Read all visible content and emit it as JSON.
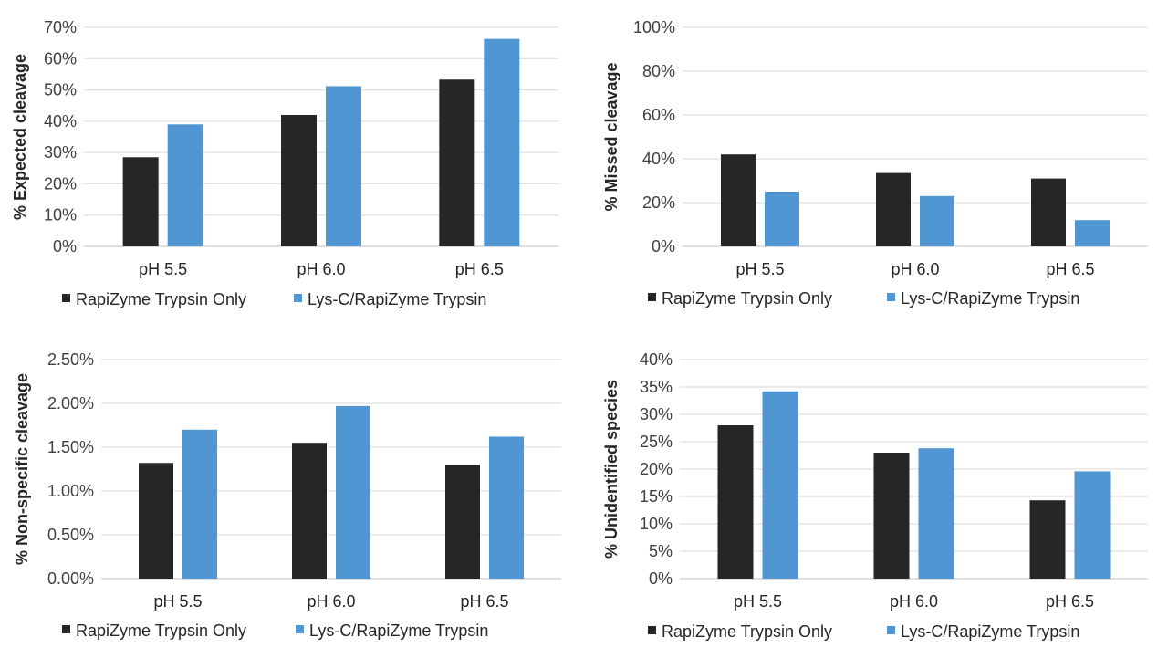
{
  "chart_data": [
    {
      "type": "bar",
      "categories": [
        "pH 5.5",
        "pH 6.0",
        "pH 6.5"
      ],
      "ylabel": "% Expected cleavage",
      "ylim": [
        0,
        70
      ],
      "yticks": [
        "0%",
        "10%",
        "20%",
        "30%",
        "40%",
        "50%",
        "60%",
        "70%"
      ],
      "series": [
        {
          "name": "RapiZyme Trypsin Only",
          "values": [
            28.5,
            42,
            53.3
          ]
        },
        {
          "name": "Lys-C/RapiZyme Trypsin",
          "values": [
            39,
            51.2,
            66.3
          ]
        }
      ],
      "legend": "bottom",
      "grid": true
    },
    {
      "type": "bar",
      "categories": [
        "pH 5.5",
        "pH 6.0",
        "pH 6.5"
      ],
      "ylabel": "% Missed cleavage",
      "ylim": [
        0,
        100
      ],
      "yticks": [
        "0%",
        "20%",
        "40%",
        "60%",
        "80%",
        "100%"
      ],
      "series": [
        {
          "name": "RapiZyme Trypsin Only",
          "values": [
            42,
            33.5,
            31
          ]
        },
        {
          "name": "Lys-C/RapiZyme Trypsin",
          "values": [
            25,
            23,
            12
          ]
        }
      ],
      "legend": "bottom",
      "grid": true
    },
    {
      "type": "bar",
      "categories": [
        "pH 5.5",
        "pH 6.0",
        "pH 6.5"
      ],
      "ylabel": "% Non-specific cleavage",
      "ylim": [
        0,
        2.5
      ],
      "yticks": [
        "0.00%",
        "0.50%",
        "1.00%",
        "1.50%",
        "2.00%",
        "2.50%"
      ],
      "series": [
        {
          "name": "RapiZyme Trypsin Only",
          "values": [
            1.32,
            1.55,
            1.3
          ]
        },
        {
          "name": "Lys-C/RapiZyme Trypsin",
          "values": [
            1.7,
            1.97,
            1.62
          ]
        }
      ],
      "legend": "bottom",
      "grid": true
    },
    {
      "type": "bar",
      "categories": [
        "pH 5.5",
        "pH 6.0",
        "pH 6.5"
      ],
      "ylabel": "% Unidentified species",
      "ylim": [
        0,
        40
      ],
      "yticks": [
        "0%",
        "5%",
        "10%",
        "15%",
        "20%",
        "25%",
        "30%",
        "35%",
        "40%"
      ],
      "series": [
        {
          "name": "RapiZyme Trypsin Only",
          "values": [
            28,
            23,
            14.3
          ]
        },
        {
          "name": "Lys-C/RapiZyme Trypsin",
          "values": [
            34.2,
            23.8,
            19.6
          ]
        }
      ],
      "legend": "bottom",
      "grid": true
    }
  ],
  "colors": {
    "series1": "#262626",
    "series2": "#4f96d2"
  }
}
